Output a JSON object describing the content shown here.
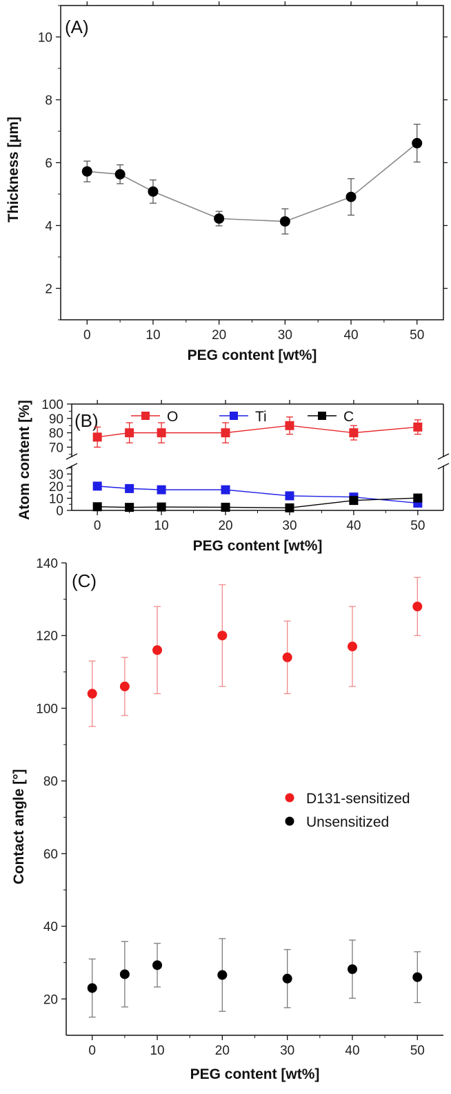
{
  "chart_data": [
    {
      "id": "A",
      "type": "line",
      "panel_label": "(A)",
      "xlabel": "PEG content [wt%]",
      "ylabel": "Thickness [µm]",
      "xlim": [
        -4,
        54
      ],
      "ylim": [
        1,
        11
      ],
      "xticks": [
        0,
        10,
        20,
        30,
        40,
        50
      ],
      "yticks": [
        2,
        4,
        6,
        8,
        10
      ],
      "grid": false,
      "series": [
        {
          "color": "#888888",
          "marker": "circle",
          "marker_color": "#000000",
          "x": [
            0,
            5,
            10,
            20,
            30,
            40,
            50
          ],
          "y": [
            5.72,
            5.63,
            5.08,
            4.22,
            4.13,
            4.91,
            6.62
          ],
          "err": [
            0.33,
            0.3,
            0.37,
            0.23,
            0.4,
            0.58,
            0.6
          ]
        }
      ]
    },
    {
      "id": "B",
      "type": "line",
      "panel_label": "(B)",
      "xlabel": "PEG content [wt%]",
      "ylabel": "Atom content [%]",
      "xlim": [
        -4,
        54
      ],
      "broken_y_axis": true,
      "ylim_lower": [
        0,
        37
      ],
      "ylim_upper": [
        63,
        100
      ],
      "xticks": [
        0,
        10,
        20,
        30,
        40,
        50
      ],
      "yticks": [
        0,
        10,
        20,
        30,
        70,
        80,
        90,
        100
      ],
      "grid": false,
      "legend_position": "top",
      "series": [
        {
          "name": "O",
          "color": "#e8282c",
          "marker": "square",
          "x": [
            0,
            5,
            10,
            20,
            30,
            40,
            50
          ],
          "y": [
            77,
            80,
            80,
            80,
            85,
            80,
            84
          ],
          "err": [
            7,
            7,
            7,
            7,
            6,
            5,
            5
          ]
        },
        {
          "name": "Ti",
          "color": "#1f1fe6",
          "marker": "square",
          "x": [
            0,
            5,
            10,
            20,
            30,
            40,
            50
          ],
          "y": [
            20,
            18,
            17,
            17,
            12,
            11,
            6
          ],
          "err": [
            3,
            2,
            2,
            2,
            2,
            2,
            2
          ]
        },
        {
          "name": "C",
          "color": "#000000",
          "marker": "square",
          "x": [
            0,
            5,
            10,
            20,
            30,
            40,
            50
          ],
          "y": [
            3,
            2.5,
            2.8,
            2.6,
            2.1,
            8.2,
            10.2
          ],
          "err": [
            0,
            0,
            0,
            0,
            0,
            0,
            0
          ]
        }
      ]
    },
    {
      "id": "C",
      "type": "scatter",
      "panel_label": "(C)",
      "xlabel": "PEG content [wt%]",
      "ylabel": "Contact angle [°]",
      "xlim": [
        -4,
        54
      ],
      "ylim": [
        10,
        140
      ],
      "xticks": [
        0,
        10,
        20,
        30,
        40,
        50
      ],
      "yticks": [
        20,
        40,
        60,
        80,
        100,
        120,
        140
      ],
      "grid": false,
      "legend_position": "center-right",
      "series": [
        {
          "name": "D131-sensitized",
          "color": "#ee1c1c",
          "errcolor": "#f08a8a",
          "marker": "circle",
          "x": [
            0,
            5,
            10,
            20,
            30,
            40,
            50
          ],
          "y": [
            104,
            106,
            116,
            120,
            114,
            117,
            128
          ],
          "err": [
            9,
            8,
            12,
            14,
            10,
            11,
            8
          ]
        },
        {
          "name": "Unsensitized",
          "color": "#000000",
          "errcolor": "#7a7a7a",
          "marker": "circle",
          "x": [
            0,
            5,
            10,
            20,
            30,
            40,
            50
          ],
          "y": [
            23,
            26.8,
            29.3,
            26.6,
            25.6,
            28.2,
            26
          ],
          "err": [
            8,
            9,
            6,
            10,
            8,
            8,
            7
          ]
        }
      ]
    }
  ]
}
